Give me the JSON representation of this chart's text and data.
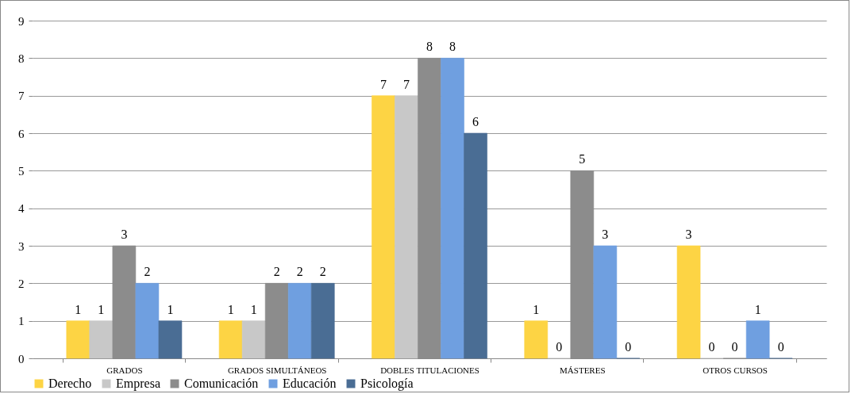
{
  "chart_data": {
    "type": "bar",
    "categories": [
      "GRADOS",
      "GRADOS SIMULTÁNEOS",
      "DOBLES TITULACIONES",
      "MÁSTERES",
      "OTROS CURSOS"
    ],
    "series": [
      {
        "name": "Derecho",
        "color": "#fdd444",
        "values": [
          1,
          1,
          7,
          1,
          3
        ]
      },
      {
        "name": "Empresa",
        "color": "#c8c8c8",
        "values": [
          1,
          1,
          7,
          0,
          0
        ]
      },
      {
        "name": "Comunicación",
        "color": "#8c8c8c",
        "values": [
          3,
          2,
          8,
          5,
          0
        ]
      },
      {
        "name": "Educación",
        "color": "#6f9fe0",
        "values": [
          2,
          2,
          8,
          3,
          1
        ]
      },
      {
        "name": "Psicología",
        "color": "#4a6d94",
        "values": [
          1,
          2,
          6,
          0,
          0
        ]
      }
    ],
    "ylim": [
      0,
      9
    ],
    "yticks": [
      0,
      1,
      2,
      3,
      4,
      5,
      6,
      7,
      8,
      9
    ],
    "grid": "y",
    "legend": "bottom",
    "data_labels": true
  }
}
